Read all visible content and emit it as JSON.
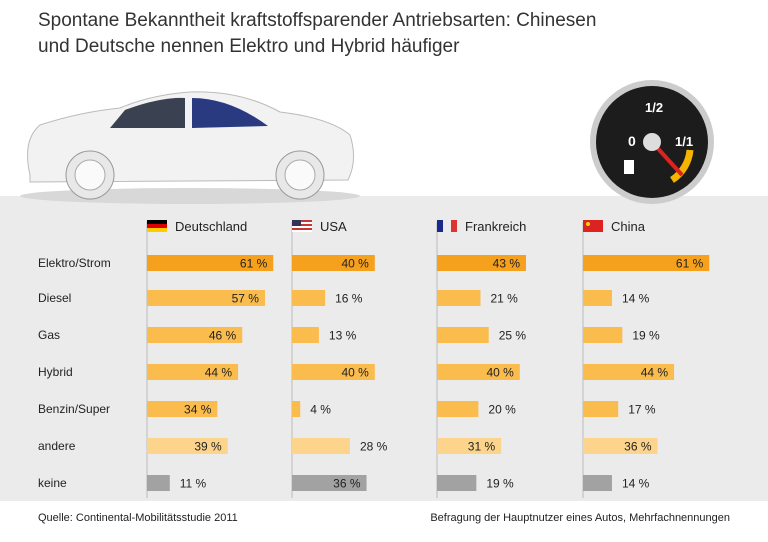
{
  "title_line1": "Spontane Bekanntheit kraftstoffsparender Antriebsarten: Chinesen",
  "title_line2": "und Deutsche nennen Elektro und Hybrid häufiger",
  "gauge": {
    "label_empty": "0",
    "label_half": "1/2",
    "label_full": "1/1"
  },
  "footer": {
    "source": "Quelle: Continental-Mobilitätsstudie 2011",
    "note": "Befragung der Hauptnutzer eines Autos, Mehrfachnennungen"
  },
  "colors": {
    "elektro": "#f6a11d",
    "default": "#fbbc4e",
    "andere": "#fdd48c",
    "keine": "#a2a2a2"
  },
  "chart_data": {
    "type": "bar",
    "orientation": "horizontal",
    "unit": "%",
    "categories": [
      "Elektro/Strom",
      "Diesel",
      "Gas",
      "Hybrid",
      "Benzin/Super",
      "andere",
      "keine"
    ],
    "series": [
      {
        "name": "Deutschland",
        "flag": "de",
        "values": [
          61,
          57,
          46,
          44,
          34,
          39,
          11
        ]
      },
      {
        "name": "USA",
        "flag": "us",
        "values": [
          40,
          16,
          13,
          40,
          4,
          28,
          36
        ]
      },
      {
        "name": "Frankreich",
        "flag": "fr",
        "values": [
          43,
          21,
          25,
          40,
          20,
          31,
          19
        ]
      },
      {
        "name": "China",
        "flag": "cn",
        "values": [
          61,
          14,
          19,
          44,
          17,
          36,
          14
        ]
      }
    ]
  }
}
